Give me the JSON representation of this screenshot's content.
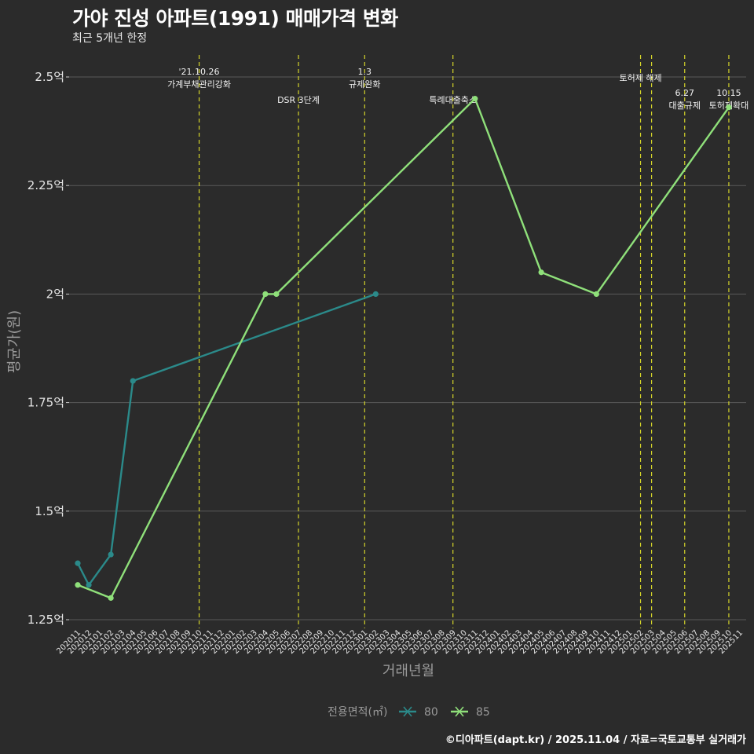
{
  "header": {
    "title": "가야 진성 아파트(1991) 매매가격 변화",
    "subtitle": "최근 5개년 한정"
  },
  "caption": "©디아파트(dapt.kr) / 2025.11.04 / 자료=국토교통부 실거래가",
  "colors": {
    "background": "#2b2b2b",
    "grid": "#5a5a5a",
    "event_line": "#d4d42a",
    "series_80": "#2b8a8a",
    "series_85": "#8fe07a"
  },
  "chart_data": {
    "type": "line",
    "title": "가야 진성 아파트(1991) 매매가격 변화",
    "subtitle": "최근 5개년 한정",
    "xlabel": "거래년월",
    "ylabel": "평균가(원)",
    "ylim": [
      1.25,
      2.55
    ],
    "yticks": [
      1.25,
      1.5,
      1.75,
      2.0,
      2.25,
      2.5
    ],
    "ytick_labels": [
      "1.25억",
      "1.5억",
      "1.75억",
      "2억",
      "2.25억",
      "2.5억"
    ],
    "x": [
      "202011",
      "202012",
      "202101",
      "202102",
      "202103",
      "202104",
      "202105",
      "202106",
      "202107",
      "202108",
      "202109",
      "202110",
      "202111",
      "202112",
      "202201",
      "202202",
      "202203",
      "202204",
      "202205",
      "202206",
      "202207",
      "202208",
      "202209",
      "202210",
      "202211",
      "202212",
      "202301",
      "202302",
      "202303",
      "202304",
      "202305",
      "202306",
      "202307",
      "202308",
      "202309",
      "202310",
      "202311",
      "202312",
      "202401",
      "202402",
      "202403",
      "202404",
      "202405",
      "202406",
      "202407",
      "202408",
      "202409",
      "202410",
      "202411",
      "202412",
      "202501",
      "202502",
      "202503",
      "202504",
      "202505",
      "202506",
      "202507",
      "202508",
      "202509",
      "202510",
      "202511"
    ],
    "legend_title": "전용면적(㎡)",
    "legend_position": "bottom",
    "series": [
      {
        "name": "80",
        "color": "#2b8a8a",
        "points": [
          {
            "x": "202011",
            "y": 1.38
          },
          {
            "x": "202012",
            "y": 1.33
          },
          {
            "x": "202102",
            "y": 1.4
          },
          {
            "x": "202104",
            "y": 1.8
          },
          {
            "x": "202302",
            "y": 2.0
          }
        ]
      },
      {
        "name": "85",
        "color": "#8fe07a",
        "points": [
          {
            "x": "202011",
            "y": 1.33
          },
          {
            "x": "202102",
            "y": 1.3
          },
          {
            "x": "202204",
            "y": 2.0
          },
          {
            "x": "202205",
            "y": 2.0
          },
          {
            "x": "202311",
            "y": 2.45
          },
          {
            "x": "202405",
            "y": 2.05
          },
          {
            "x": "202410",
            "y": 2.0
          },
          {
            "x": "202510",
            "y": 2.43
          }
        ]
      }
    ],
    "events": [
      {
        "x": "202110",
        "line1": "'21.10.26",
        "line2": "가계부채관리강화"
      },
      {
        "x": "202207",
        "line1": "",
        "line2": "DSR 3단계"
      },
      {
        "x": "202301",
        "line1": "1.3",
        "line2": "규제완화"
      },
      {
        "x": "202309",
        "line1": "",
        "line2": "특례대출축소"
      },
      {
        "x": "202502",
        "line1": "",
        "line2": "토허제 해제"
      },
      {
        "x": "202503",
        "line1": "",
        "line2": ""
      },
      {
        "x": "202506",
        "line1": "6.27",
        "line2": "대출규제"
      },
      {
        "x": "202510",
        "line1": "10.15",
        "line2": "토허제확대"
      }
    ]
  }
}
